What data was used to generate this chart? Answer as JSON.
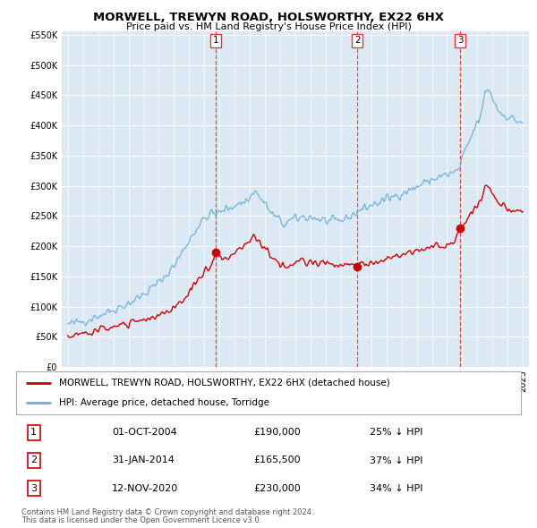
{
  "title": "MORWELL, TREWYN ROAD, HOLSWORTHY, EX22 6HX",
  "subtitle": "Price paid vs. HM Land Registry's House Price Index (HPI)",
  "legend_line1": "MORWELL, TREWYN ROAD, HOLSWORTHY, EX22 6HX (detached house)",
  "legend_line2": "HPI: Average price, detached house, Torridge",
  "transactions": [
    {
      "num": 1,
      "date": "01-OCT-2004",
      "price": "£190,000",
      "pct": "25% ↓ HPI",
      "year": 2004.75,
      "price_val": 190000
    },
    {
      "num": 2,
      "date": "31-JAN-2014",
      "price": "£165,500",
      "pct": "37% ↓ HPI",
      "year": 2014.08,
      "price_val": 165500
    },
    {
      "num": 3,
      "date": "12-NOV-2020",
      "price": "£230,000",
      "pct": "34% ↓ HPI",
      "year": 2020.87,
      "price_val": 230000
    }
  ],
  "footnote1": "Contains HM Land Registry data © Crown copyright and database right 2024.",
  "footnote2": "This data is licensed under the Open Government Licence v3.0.",
  "hpi_color": "#6baed6",
  "price_color": "#cc0000",
  "dashed_color": "#ee3333",
  "bg_color": "#dce9f5",
  "grid_color": "#ffffff",
  "ylim": [
    0,
    550000
  ],
  "xlim": [
    1994.6,
    2025.4
  ]
}
